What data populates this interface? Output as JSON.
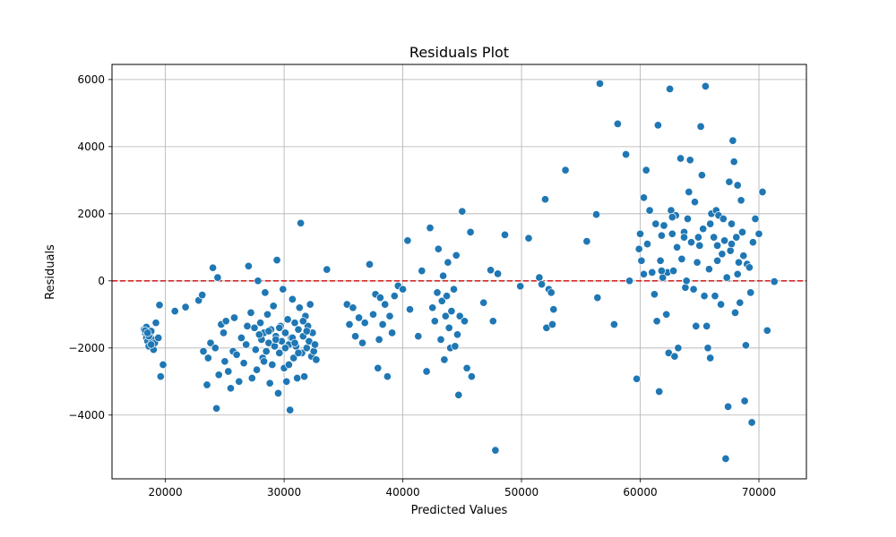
{
  "chart_data": {
    "type": "scatter",
    "title": "Residuals Plot",
    "xlabel": "Predicted Values",
    "ylabel": "Residuals",
    "xlim": [
      15500,
      74000
    ],
    "ylim": [
      -5900,
      6450
    ],
    "x_ticks": [
      20000,
      30000,
      40000,
      50000,
      60000,
      70000
    ],
    "y_ticks": [
      -4000,
      -2000,
      0,
      2000,
      4000,
      6000
    ],
    "x_tick_labels": [
      "20000",
      "30000",
      "40000",
      "50000",
      "60000",
      "70000"
    ],
    "y_tick_labels": [
      "−4000",
      "−2000",
      "0",
      "2000",
      "4000",
      "6000"
    ],
    "grid": true,
    "reference_line": {
      "y": 0,
      "color": "#d62728",
      "style": "dashed"
    },
    "marker_color": "#1f77b4",
    "series": [
      {
        "points": [
          [
            18200,
            -1450
          ],
          [
            18300,
            -1550
          ],
          [
            18400,
            -1700
          ],
          [
            18500,
            -1800
          ],
          [
            18400,
            -1380
          ],
          [
            18600,
            -1950
          ],
          [
            18700,
            -1600
          ],
          [
            18800,
            -1500
          ],
          [
            18900,
            -1750
          ],
          [
            19000,
            -2050
          ],
          [
            18600,
            -1650
          ],
          [
            18300,
            -1480
          ],
          [
            19100,
            -1850
          ],
          [
            19200,
            -1250
          ],
          [
            19400,
            -1700
          ],
          [
            19500,
            -720
          ],
          [
            19600,
            -2850
          ],
          [
            19800,
            -2500
          ],
          [
            18500,
            -1550
          ],
          [
            18800,
            -1900
          ],
          [
            20800,
            -900
          ],
          [
            21700,
            -780
          ],
          [
            22800,
            -580
          ],
          [
            23100,
            -420
          ],
          [
            23200,
            -2100
          ],
          [
            23500,
            -3100
          ],
          [
            23600,
            -2300
          ],
          [
            23800,
            -1850
          ],
          [
            24000,
            390
          ],
          [
            24200,
            -2000
          ],
          [
            24300,
            -3800
          ],
          [
            24400,
            100
          ],
          [
            24500,
            -2800
          ],
          [
            24700,
            -1300
          ],
          [
            24900,
            -1550
          ],
          [
            25000,
            -2400
          ],
          [
            25100,
            -1200
          ],
          [
            25300,
            -2700
          ],
          [
            25500,
            -3200
          ],
          [
            25700,
            -2100
          ],
          [
            25800,
            -1100
          ],
          [
            26000,
            -2200
          ],
          [
            26200,
            -3000
          ],
          [
            26400,
            -1700
          ],
          [
            26600,
            -2450
          ],
          [
            26800,
            -1900
          ],
          [
            27000,
            440
          ],
          [
            27200,
            -950
          ],
          [
            27300,
            -2900
          ],
          [
            27500,
            -1400
          ],
          [
            27700,
            -2650
          ],
          [
            27800,
            0
          ],
          [
            28000,
            -1250
          ],
          [
            28100,
            -1750
          ],
          [
            28200,
            -2300
          ],
          [
            28300,
            -1550
          ],
          [
            28400,
            -350
          ],
          [
            28500,
            -2100
          ],
          [
            28600,
            -1000
          ],
          [
            28700,
            -1850
          ],
          [
            28800,
            -3050
          ],
          [
            28900,
            -1450
          ],
          [
            29000,
            -2500
          ],
          [
            29100,
            -750
          ],
          [
            29200,
            -1950
          ],
          [
            29300,
            -1650
          ],
          [
            29400,
            620
          ],
          [
            29500,
            -3350
          ],
          [
            29600,
            -2150
          ],
          [
            29700,
            -1350
          ],
          [
            29800,
            -1800
          ],
          [
            29900,
            -250
          ],
          [
            30000,
            -2600
          ],
          [
            30100,
            -1550
          ],
          [
            30200,
            -3000
          ],
          [
            30300,
            -1150
          ],
          [
            30400,
            -1900
          ],
          [
            30500,
            -3850
          ],
          [
            30600,
            -1700
          ],
          [
            30700,
            -550
          ],
          [
            30800,
            -2300
          ],
          [
            30900,
            -1250
          ],
          [
            31000,
            -1950
          ],
          [
            31100,
            -2900
          ],
          [
            31200,
            -1450
          ],
          [
            31300,
            -800
          ],
          [
            31400,
            1720
          ],
          [
            31500,
            -2150
          ],
          [
            31600,
            -1650
          ],
          [
            31700,
            -2850
          ],
          [
            31800,
            -1050
          ],
          [
            31900,
            -2000
          ],
          [
            32000,
            -1350
          ],
          [
            32100,
            -1800
          ],
          [
            32200,
            -700
          ],
          [
            32300,
            -2250
          ],
          [
            32400,
            -1550
          ],
          [
            32500,
            -2100
          ],
          [
            32600,
            -1900
          ],
          [
            32700,
            -2350
          ],
          [
            27900,
            -1600
          ],
          [
            28700,
            -1500
          ],
          [
            29300,
            -1750
          ],
          [
            30100,
            -2000
          ],
          [
            30700,
            -1700
          ],
          [
            31200,
            -2150
          ],
          [
            31900,
            -1500
          ],
          [
            28300,
            -2400
          ],
          [
            29600,
            -1400
          ],
          [
            30900,
            -1850
          ],
          [
            27600,
            -2050
          ],
          [
            26900,
            -1350
          ],
          [
            31600,
            -1200
          ],
          [
            30400,
            -2500
          ],
          [
            33600,
            340
          ],
          [
            35300,
            -700
          ],
          [
            35500,
            -1300
          ],
          [
            35800,
            -800
          ],
          [
            36000,
            -1650
          ],
          [
            36300,
            -1100
          ],
          [
            36600,
            -1850
          ],
          [
            36800,
            -1250
          ],
          [
            37200,
            490
          ],
          [
            37500,
            -1000
          ],
          [
            37700,
            -400
          ],
          [
            37900,
            -2600
          ],
          [
            38000,
            -1750
          ],
          [
            38100,
            -500
          ],
          [
            38300,
            -1300
          ],
          [
            38500,
            -700
          ],
          [
            38700,
            -2850
          ],
          [
            38900,
            -1050
          ],
          [
            39100,
            -1550
          ],
          [
            39300,
            -450
          ],
          [
            39600,
            -150
          ],
          [
            40000,
            -250
          ],
          [
            40400,
            1200
          ],
          [
            40600,
            -850
          ],
          [
            41300,
            -1650
          ],
          [
            41600,
            300
          ],
          [
            42000,
            -2700
          ],
          [
            42300,
            1580
          ],
          [
            42500,
            -800
          ],
          [
            42700,
            -1200
          ],
          [
            42900,
            -350
          ],
          [
            43000,
            950
          ],
          [
            43200,
            -1750
          ],
          [
            43300,
            -600
          ],
          [
            43400,
            150
          ],
          [
            43500,
            -2350
          ],
          [
            43600,
            -1050
          ],
          [
            43700,
            -450
          ],
          [
            43800,
            550
          ],
          [
            43900,
            -1400
          ],
          [
            44000,
            -2000
          ],
          [
            44100,
            -900
          ],
          [
            44300,
            -250
          ],
          [
            44400,
            -1950
          ],
          [
            44500,
            760
          ],
          [
            44600,
            -1600
          ],
          [
            44700,
            -3400
          ],
          [
            44800,
            -1050
          ],
          [
            45000,
            2070
          ],
          [
            45200,
            -1200
          ],
          [
            45400,
            -2600
          ],
          [
            45700,
            1450
          ],
          [
            45800,
            -2850
          ],
          [
            46800,
            -650
          ],
          [
            47400,
            320
          ],
          [
            47600,
            -1200
          ],
          [
            47800,
            -5050
          ],
          [
            48000,
            210
          ],
          [
            48600,
            1370
          ],
          [
            49900,
            -160
          ],
          [
            50600,
            1270
          ],
          [
            51500,
            100
          ],
          [
            51700,
            -100
          ],
          [
            52000,
            2430
          ],
          [
            52100,
            -1400
          ],
          [
            52300,
            -250
          ],
          [
            52500,
            -350
          ],
          [
            52600,
            -1300
          ],
          [
            52700,
            -850
          ],
          [
            53700,
            3300
          ],
          [
            55500,
            1180
          ],
          [
            56300,
            1980
          ],
          [
            56400,
            -500
          ],
          [
            56600,
            5880
          ],
          [
            57800,
            -1300
          ],
          [
            58100,
            4680
          ],
          [
            58800,
            3770
          ],
          [
            59100,
            0
          ],
          [
            59700,
            -2920
          ],
          [
            59900,
            950
          ],
          [
            60000,
            1400
          ],
          [
            60100,
            600
          ],
          [
            60300,
            2480
          ],
          [
            60500,
            3300
          ],
          [
            60600,
            1100
          ],
          [
            60800,
            2100
          ],
          [
            61000,
            250
          ],
          [
            61200,
            -400
          ],
          [
            61300,
            1700
          ],
          [
            61400,
            -1200
          ],
          [
            61500,
            4640
          ],
          [
            61600,
            -3300
          ],
          [
            61700,
            600
          ],
          [
            61800,
            1350
          ],
          [
            61900,
            100
          ],
          [
            62000,
            1650
          ],
          [
            62200,
            -1000
          ],
          [
            62300,
            250
          ],
          [
            62400,
            -2150
          ],
          [
            62500,
            5720
          ],
          [
            62600,
            2100
          ],
          [
            62700,
            1400
          ],
          [
            62800,
            300
          ],
          [
            62900,
            -2250
          ],
          [
            63000,
            1950
          ],
          [
            63100,
            1000
          ],
          [
            63200,
            -2000
          ],
          [
            63400,
            3650
          ],
          [
            63500,
            650
          ],
          [
            63700,
            1450
          ],
          [
            63800,
            -200
          ],
          [
            63900,
            0
          ],
          [
            64100,
            2650
          ],
          [
            64200,
            3600
          ],
          [
            64300,
            1150
          ],
          [
            64500,
            -250
          ],
          [
            64600,
            2350
          ],
          [
            64700,
            -1350
          ],
          [
            64800,
            550
          ],
          [
            65000,
            1050
          ],
          [
            65100,
            4600
          ],
          [
            65200,
            3150
          ],
          [
            65300,
            1550
          ],
          [
            65400,
            -450
          ],
          [
            65500,
            5800
          ],
          [
            65600,
            -1350
          ],
          [
            65700,
            -2000
          ],
          [
            65800,
            350
          ],
          [
            65900,
            -2300
          ],
          [
            66000,
            2000
          ],
          [
            66200,
            1300
          ],
          [
            66300,
            -450
          ],
          [
            66400,
            2100
          ],
          [
            66500,
            1050
          ],
          [
            66600,
            1950
          ],
          [
            66800,
            -700
          ],
          [
            66900,
            800
          ],
          [
            67000,
            1850
          ],
          [
            67100,
            1200
          ],
          [
            67200,
            -5300
          ],
          [
            67300,
            100
          ],
          [
            67400,
            -3750
          ],
          [
            67500,
            2950
          ],
          [
            67600,
            900
          ],
          [
            67700,
            1700
          ],
          [
            67800,
            4180
          ],
          [
            67900,
            3550
          ],
          [
            68000,
            -950
          ],
          [
            68100,
            1300
          ],
          [
            68200,
            2850
          ],
          [
            68300,
            550
          ],
          [
            68400,
            -650
          ],
          [
            68500,
            2400
          ],
          [
            68600,
            1450
          ],
          [
            68700,
            750
          ],
          [
            68800,
            -3580
          ],
          [
            68900,
            -1920
          ],
          [
            69000,
            500
          ],
          [
            69200,
            400
          ],
          [
            69300,
            -350
          ],
          [
            69400,
            -4220
          ],
          [
            69500,
            1150
          ],
          [
            69700,
            1850
          ],
          [
            70000,
            1400
          ],
          [
            70300,
            2650
          ],
          [
            70700,
            -1480
          ],
          [
            71300,
            -20
          ],
          [
            62700,
            1900
          ],
          [
            64000,
            1850
          ],
          [
            65900,
            1700
          ],
          [
            67700,
            1100
          ],
          [
            66500,
            600
          ],
          [
            64900,
            1300
          ],
          [
            61800,
            300
          ],
          [
            63700,
            1300
          ],
          [
            68200,
            200
          ],
          [
            60300,
            200
          ]
        ]
      }
    ]
  }
}
